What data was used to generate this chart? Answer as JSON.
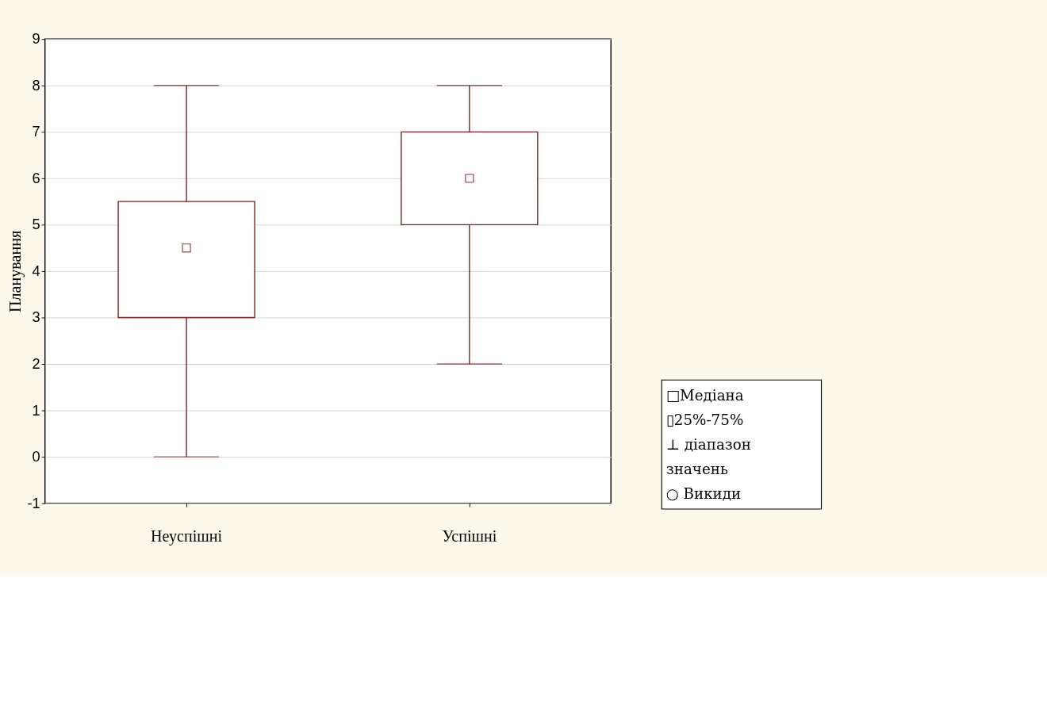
{
  "chart_data": {
    "type": "box",
    "ylabel": "Планування",
    "categories": [
      "Неуспішні",
      "Успішні"
    ],
    "series": [
      {
        "color": "#7f1f1f",
        "boxes": [
          {
            "low": 0,
            "q1": 3,
            "median": 4.5,
            "q3": 5.5,
            "high": 8
          },
          {
            "low": 2,
            "q1": 5,
            "median": 6,
            "q3": 7,
            "high": 8
          }
        ]
      }
    ],
    "ylim": [
      -1,
      9
    ],
    "yticks": [
      -1,
      0,
      1,
      2,
      3,
      4,
      5,
      6,
      7,
      8,
      9
    ],
    "grid": "y",
    "annotations": [
      "□Медіана",
      "▯25%-75%",
      "⊥ діапазон значень",
      "○ Викиди"
    ]
  }
}
